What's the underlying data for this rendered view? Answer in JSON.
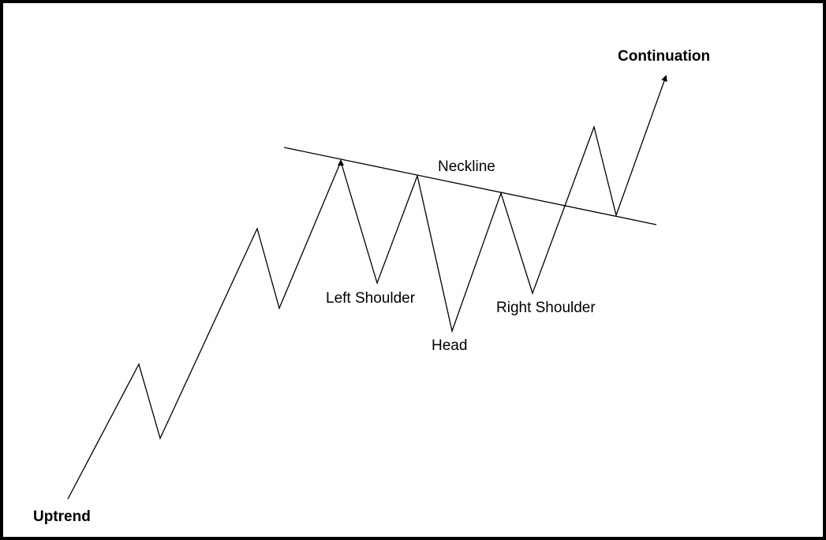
{
  "diagram": {
    "labels": {
      "uptrend": "Uptrend",
      "continuation": "Continuation",
      "neckline": "Neckline",
      "left_shoulder": "Left Shoulder",
      "head": "Head",
      "right_shoulder": "Right Shoulder"
    },
    "colors": {
      "line": "#000000",
      "background": "#ffffff",
      "border": "#000000"
    }
  }
}
